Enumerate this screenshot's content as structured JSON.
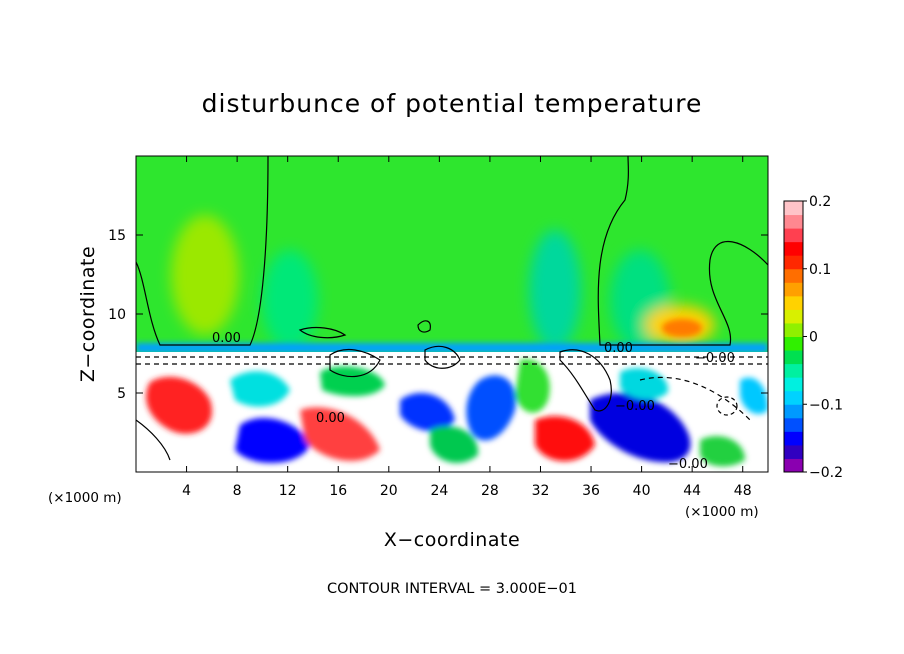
{
  "chart_data": {
    "type": "heatmap",
    "title": "disturbunce of potential temperature",
    "xlabel": "X−coordinate",
    "ylabel": "Z−coordinate",
    "x_unit": "(×1000 m)",
    "xlim": [
      0,
      50
    ],
    "ylim": [
      0,
      20
    ],
    "x_ticks": [
      "4",
      "8",
      "12",
      "16",
      "20",
      "24",
      "28",
      "32",
      "36",
      "40",
      "44",
      "48"
    ],
    "x_tick_values": [
      4,
      8,
      12,
      16,
      20,
      24,
      28,
      32,
      36,
      40,
      44,
      48
    ],
    "y_ticks": [
      "5",
      "10",
      "15"
    ],
    "y_tick_values": [
      5,
      10,
      15
    ],
    "colorbar": {
      "range": [
        -0.2,
        0.2
      ],
      "labels": [
        "0.2",
        "0.1",
        "0",
        "−0.1",
        "−0.2"
      ],
      "label_values": [
        0.2,
        0.1,
        0,
        -0.1,
        -0.2
      ],
      "colors": [
        "#8a00b0",
        "#3000c0",
        "#0000ff",
        "#0050ff",
        "#009aff",
        "#00d2ff",
        "#00f0e0",
        "#00f0a0",
        "#00e050",
        "#30f000",
        "#90f000",
        "#d8f000",
        "#ffd200",
        "#ffa000",
        "#ff6e00",
        "#ff2800",
        "#ff0000",
        "#ff4050",
        "#ff8890",
        "#ffc4c8"
      ]
    },
    "contour_labels": [
      "0.00",
      "0.00",
      "−0.00",
      "0.00",
      "−0.00",
      "−0.00"
    ],
    "contour_interval_note": "CONTOUR INTERVAL = 3.000E−01",
    "grid": false
  }
}
